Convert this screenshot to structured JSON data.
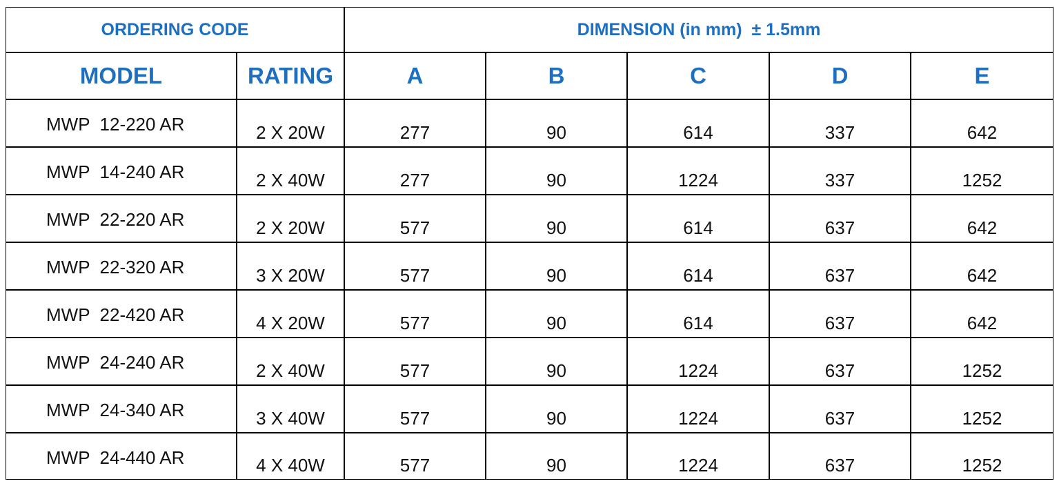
{
  "table": {
    "group_headers": [
      "ORDERING CODE",
      "DIMENSION (in mm)  ± 1.5mm"
    ],
    "headers": [
      "MODEL",
      "RATING",
      "A",
      "B",
      "C",
      "D",
      "E"
    ],
    "rows": [
      [
        "MWP  12-220 AR",
        "2 X 20W",
        "277",
        "90",
        "614",
        "337",
        "642"
      ],
      [
        "MWP  14-240 AR",
        "2 X 40W",
        "277",
        "90",
        "1224",
        "337",
        "1252"
      ],
      [
        "MWP  22-220 AR",
        "2 X 20W",
        "577",
        "90",
        "614",
        "637",
        "642"
      ],
      [
        "MWP  22-320 AR",
        "3 X 20W",
        "577",
        "90",
        "614",
        "637",
        "642"
      ],
      [
        "MWP  22-420 AR",
        "4 X 20W",
        "577",
        "90",
        "614",
        "637",
        "642"
      ],
      [
        "MWP  24-240 AR",
        "2 X 40W",
        "577",
        "90",
        "1224",
        "637",
        "1252"
      ],
      [
        "MWP  24-340 AR",
        "3 X 40W",
        "577",
        "90",
        "1224",
        "637",
        "1252"
      ],
      [
        "MWP  24-440 AR",
        "4 X 40W",
        "577",
        "90",
        "1224",
        "637",
        "1252"
      ]
    ]
  }
}
